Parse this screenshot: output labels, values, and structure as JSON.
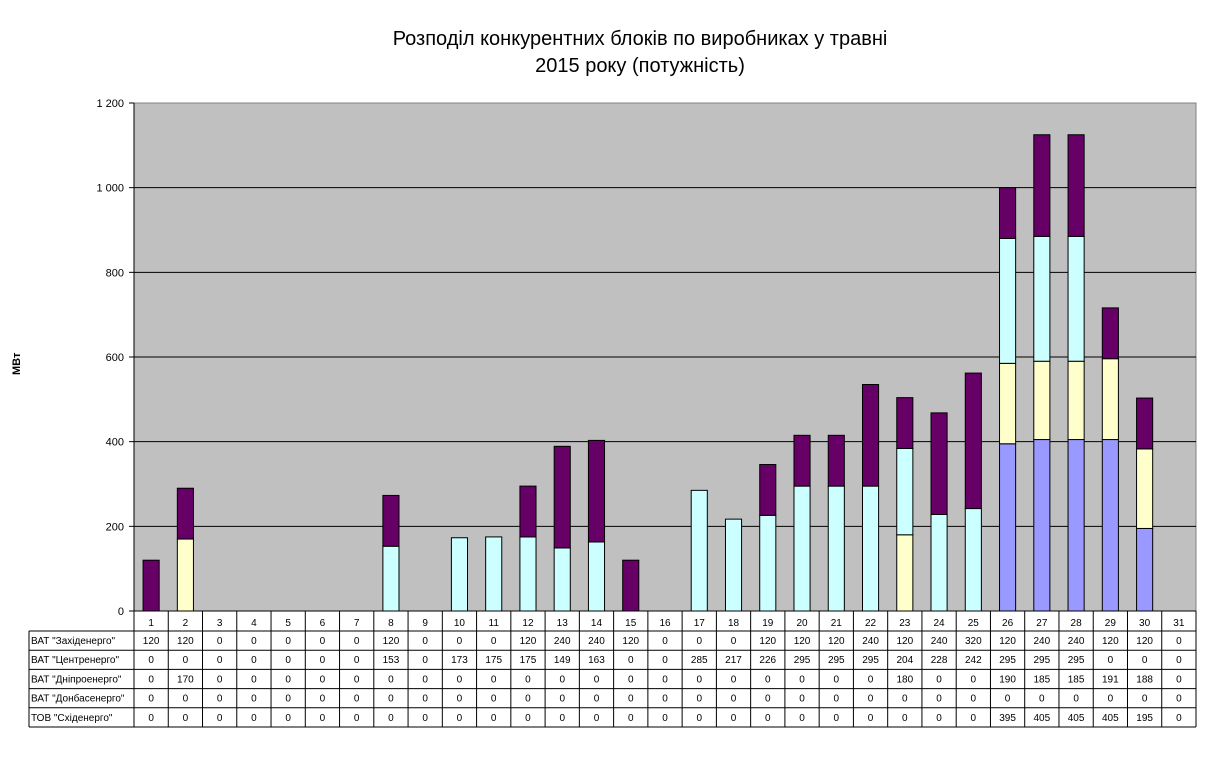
{
  "chart_data": {
    "type": "bar",
    "stacked": true,
    "title": [
      "Розподіл конкурентних блоків по виробниках у травні",
      "2015 року (потужність)"
    ],
    "ylabel": "МВт",
    "ylim": [
      0,
      1200
    ],
    "yticks": [
      "0",
      "200",
      "400",
      "600",
      "800",
      "1 000",
      "1 200"
    ],
    "ytick_values": [
      0,
      200,
      400,
      600,
      800,
      1000,
      1200
    ],
    "grid": true,
    "legend": "data-table-below",
    "categories": [
      "1",
      "2",
      "3",
      "4",
      "5",
      "6",
      "7",
      "8",
      "9",
      "10",
      "11",
      "12",
      "13",
      "14",
      "15",
      "16",
      "17",
      "18",
      "19",
      "20",
      "21",
      "22",
      "23",
      "24",
      "25",
      "26",
      "27",
      "28",
      "29",
      "30",
      "31"
    ],
    "series": [
      {
        "name": "ВАТ \"Західенерго\"",
        "color": "#660066",
        "values": [
          120,
          120,
          0,
          0,
          0,
          0,
          0,
          120,
          0,
          0,
          0,
          120,
          240,
          240,
          120,
          0,
          0,
          0,
          120,
          120,
          120,
          240,
          120,
          240,
          320,
          120,
          240,
          240,
          120,
          120,
          0
        ]
      },
      {
        "name": "ВАТ \"Центренерго\"",
        "color": "#ccffff",
        "values": [
          0,
          0,
          0,
          0,
          0,
          0,
          0,
          153,
          0,
          173,
          175,
          175,
          149,
          163,
          0,
          0,
          285,
          217,
          226,
          295,
          295,
          295,
          204,
          228,
          242,
          295,
          295,
          295,
          0,
          0,
          0
        ]
      },
      {
        "name": "ВАТ \"Дніпроенерго\"",
        "color": "#ffffcc",
        "values": [
          0,
          170,
          0,
          0,
          0,
          0,
          0,
          0,
          0,
          0,
          0,
          0,
          0,
          0,
          0,
          0,
          0,
          0,
          0,
          0,
          0,
          0,
          180,
          0,
          0,
          190,
          185,
          185,
          191,
          188,
          0
        ]
      },
      {
        "name": "ВАТ \"Донбасенерго\"",
        "color": "#cc99ff",
        "values": [
          0,
          0,
          0,
          0,
          0,
          0,
          0,
          0,
          0,
          0,
          0,
          0,
          0,
          0,
          0,
          0,
          0,
          0,
          0,
          0,
          0,
          0,
          0,
          0,
          0,
          0,
          0,
          0,
          0,
          0,
          0
        ]
      },
      {
        "name": "ТОВ \"Східенерго\"",
        "color": "#9999ff",
        "values": [
          0,
          0,
          0,
          0,
          0,
          0,
          0,
          0,
          0,
          0,
          0,
          0,
          0,
          0,
          0,
          0,
          0,
          0,
          0,
          0,
          0,
          0,
          0,
          0,
          0,
          395,
          405,
          405,
          405,
          195,
          0
        ]
      }
    ],
    "plot_background": "#c0c0c0"
  }
}
